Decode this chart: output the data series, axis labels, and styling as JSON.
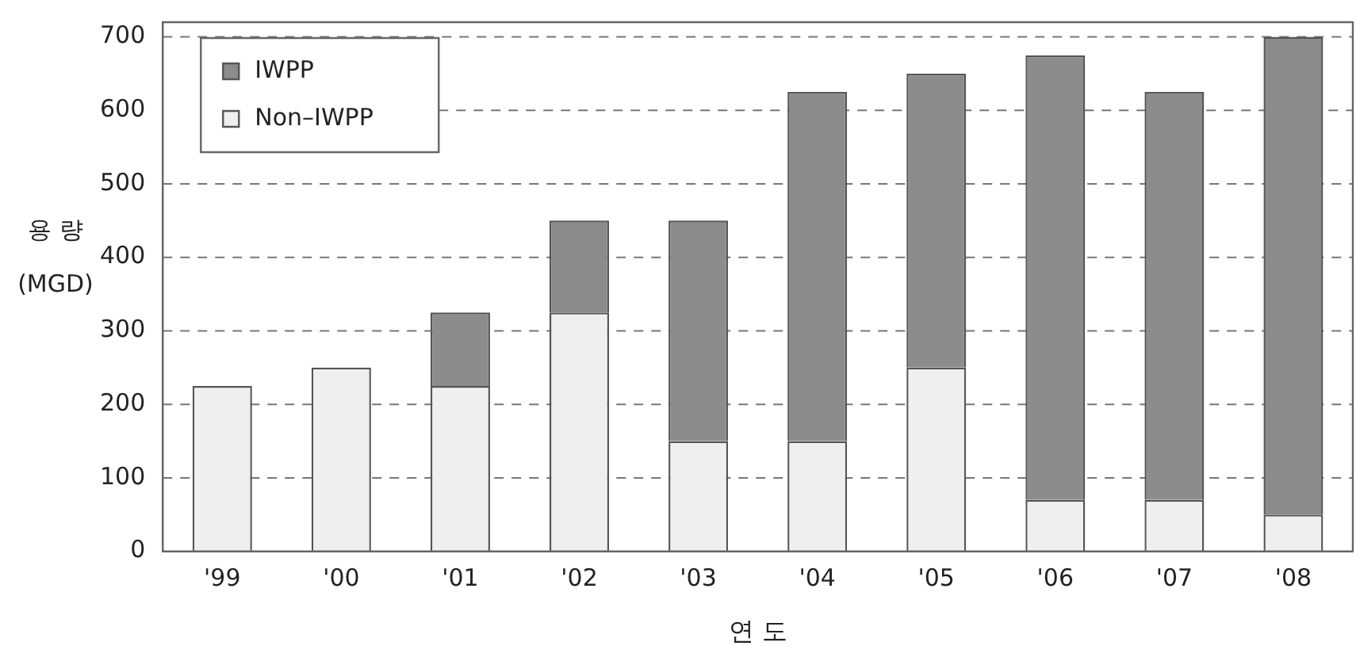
{
  "chart_data": {
    "type": "bar",
    "stacked": true,
    "xlabel": "연 도",
    "ylabel": "용 량\n(MGD)",
    "categories": [
      "'99",
      "'00",
      "'01",
      "'02",
      "'03",
      "'04",
      "'05",
      "'06",
      "'07",
      "'08"
    ],
    "series": [
      {
        "name": "Non–IWPP",
        "color": "#efefef",
        "values": [
          225,
          250,
          225,
          325,
          150,
          150,
          250,
          70,
          70,
          50
        ]
      },
      {
        "name": "IWPP",
        "color": "#8c8c8c",
        "values": [
          null,
          null,
          100,
          125,
          300,
          475,
          400,
          605,
          555,
          650
        ]
      }
    ],
    "ylim": [
      0,
      720
    ],
    "yticks": [
      0,
      100,
      200,
      300,
      400,
      500,
      600,
      700
    ],
    "grid": "y",
    "legend": "top left"
  }
}
